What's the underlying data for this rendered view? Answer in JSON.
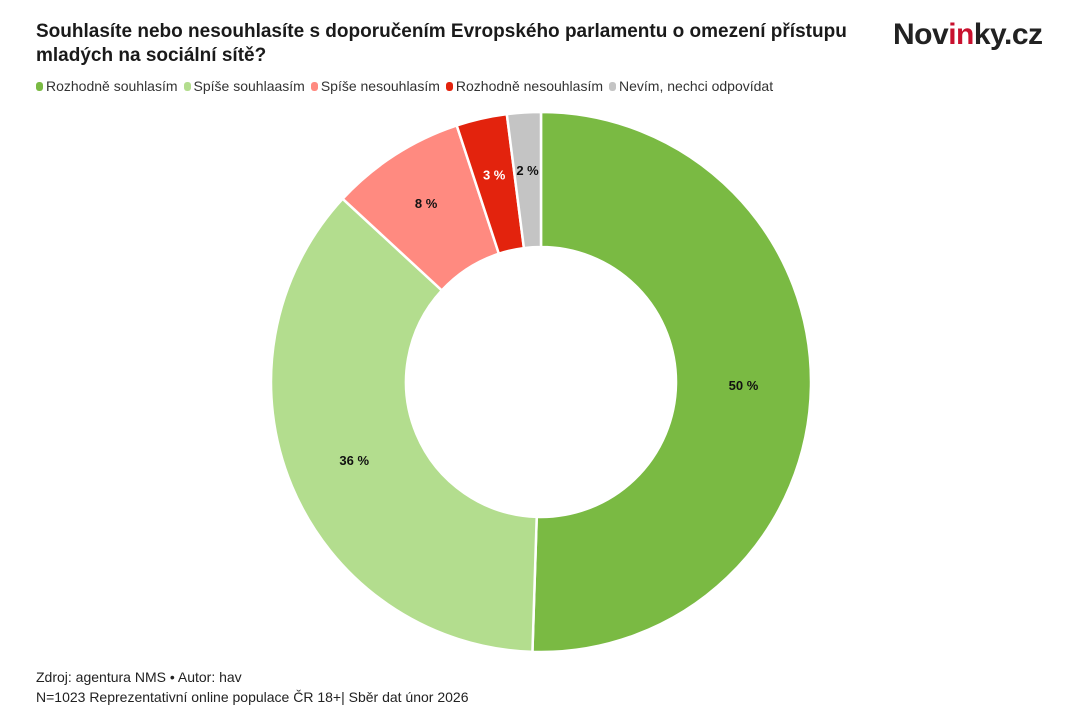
{
  "chart_data": {
    "type": "pie",
    "variant": "donut",
    "title": "Souhlasíte nebo nesouhlasíte s doporučením Evropského parlamentu o omezení přístupu mladých na sociální sítě?",
    "legend_position": "top-left",
    "categories": [
      "Rozhodně souhlasím",
      "Spíše souhlaasím",
      "Spíše nesouhlasím",
      "Rozhodně nesouhlasím",
      "Nevím, nechci odpovídat"
    ],
    "values": [
      50,
      36,
      8,
      3,
      2
    ],
    "labels": [
      "50 %",
      "36 %",
      "8 %",
      "3 %",
      "2 %"
    ],
    "colors": [
      "#7aba43",
      "#b3dd8e",
      "#ff8a80",
      "#e3230d",
      "#c4c4c4"
    ],
    "label_colors": [
      "#111111",
      "#111111",
      "#111111",
      "#ffffff",
      "#111111"
    ]
  },
  "brand": {
    "pre": "Nov",
    "accent": "in",
    "post": "ky.cz"
  },
  "footer": {
    "source": "Zdroj: agentura NMS • Autor: hav",
    "note": "N=1023 Reprezentativní online populace ČR 18+| Sběr dat únor 2026"
  }
}
